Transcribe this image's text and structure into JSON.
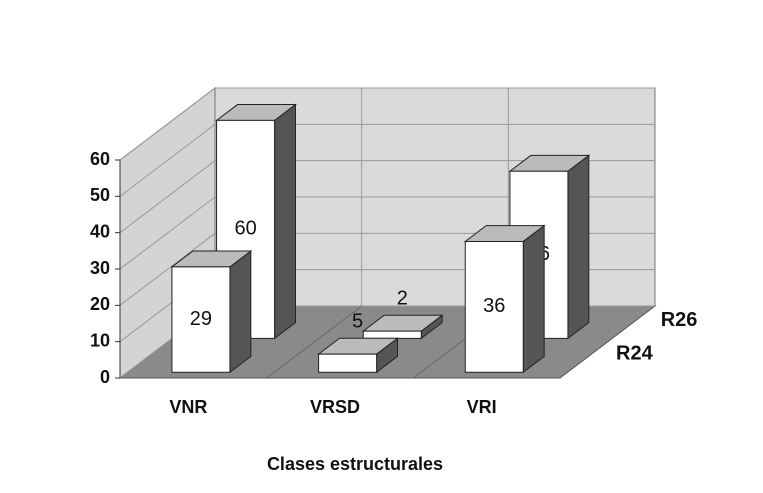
{
  "chart_data": {
    "type": "bar3d",
    "x_label": "Clases estructurales",
    "categories": [
      "VNR",
      "VRSD",
      "VRI"
    ],
    "series": [
      {
        "name": "R24",
        "color": "#ffffff",
        "values": [
          29,
          5,
          36
        ]
      },
      {
        "name": "R26",
        "color": "#ffffff",
        "values": [
          60,
          2,
          46
        ]
      }
    ],
    "ylim": [
      0,
      60
    ],
    "yticks": [
      0,
      10,
      20,
      30,
      40,
      50,
      60
    ],
    "grid": true
  }
}
